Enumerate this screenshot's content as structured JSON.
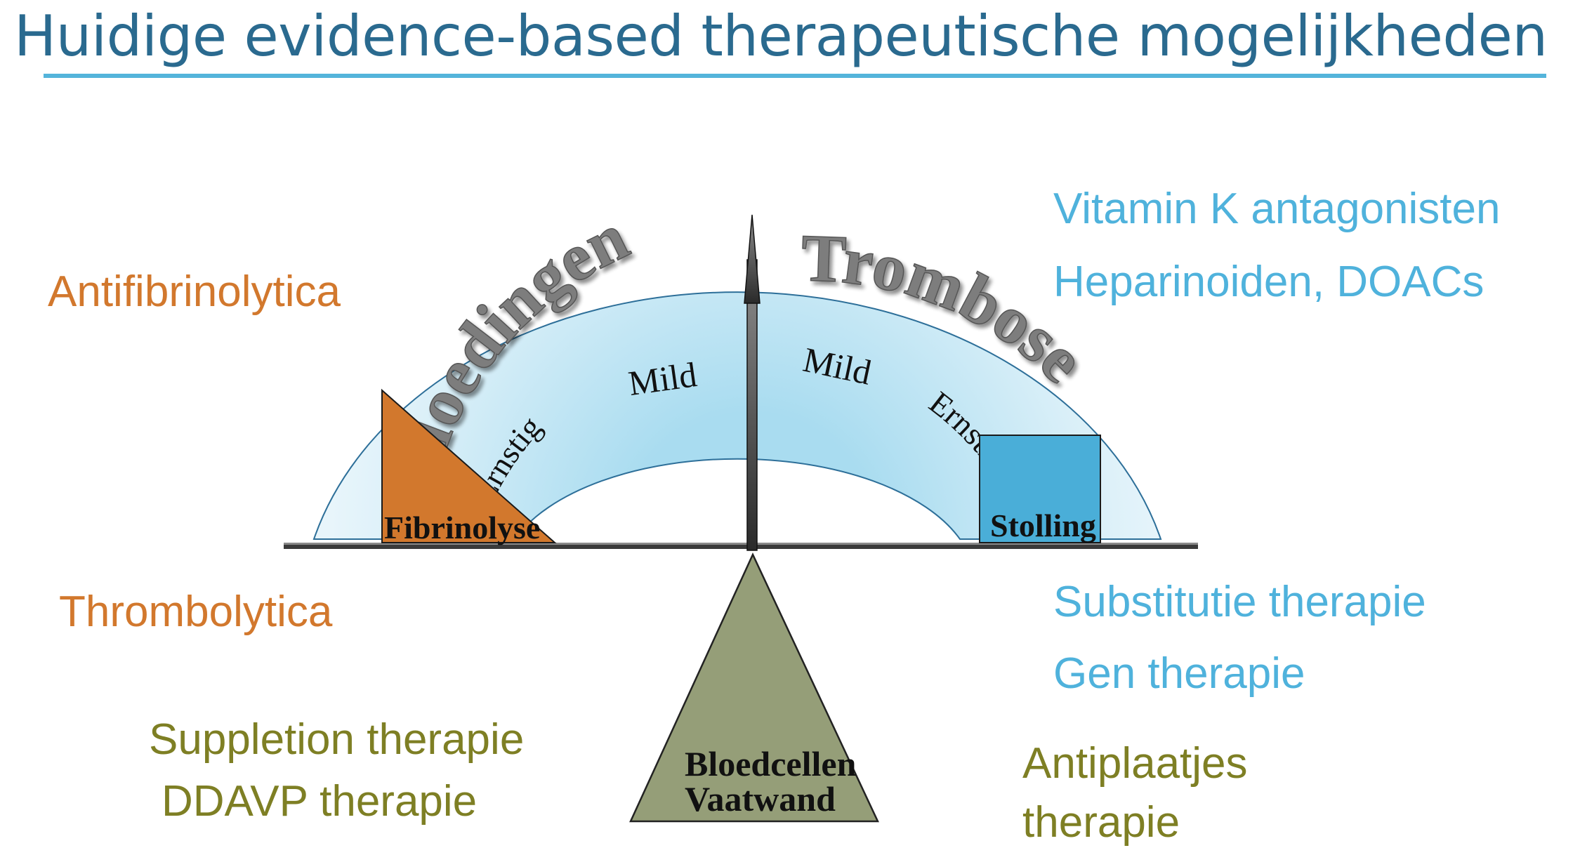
{
  "title": "Huidige evidence-based therapeutische mogelijkheden",
  "colors": {
    "title": "#2a6a8f",
    "rule": "#54b4db",
    "orange": "#d2782d",
    "blue": "#4fb2dc",
    "olive": "#7e7f24",
    "triangle": "#d2782d",
    "square": "#4aaed8",
    "fulcrum": "#959e78"
  },
  "left_labels": {
    "antifibrinolytica": "Antifibrinolytica",
    "thrombolytica": "Thrombolytica",
    "suppletion": "Suppletion therapie",
    "ddavp": "DDAVP therapie"
  },
  "right_labels": {
    "vka": "Vitamin K antagonisten",
    "heparinoiden": "Heparinoiden, DOACs",
    "substitutie": "Substitutie therapie",
    "gen": "Gen therapie",
    "antiplaatjes_line1": "Antiplaatjes",
    "antiplaatjes_line2": "therapie"
  },
  "arc": {
    "left_word": "Bloedingen",
    "right_word": "Trombose",
    "left_mild": "Mild",
    "left_ernstig": "Ernstig",
    "right_mild": "Mild",
    "right_ernstig": "Ernstig"
  },
  "scale": {
    "left_weight": "Fibrinolyse",
    "right_weight": "Stolling",
    "fulcrum_line1": "Bloedcellen",
    "fulcrum_line2": "Vaatwand"
  }
}
